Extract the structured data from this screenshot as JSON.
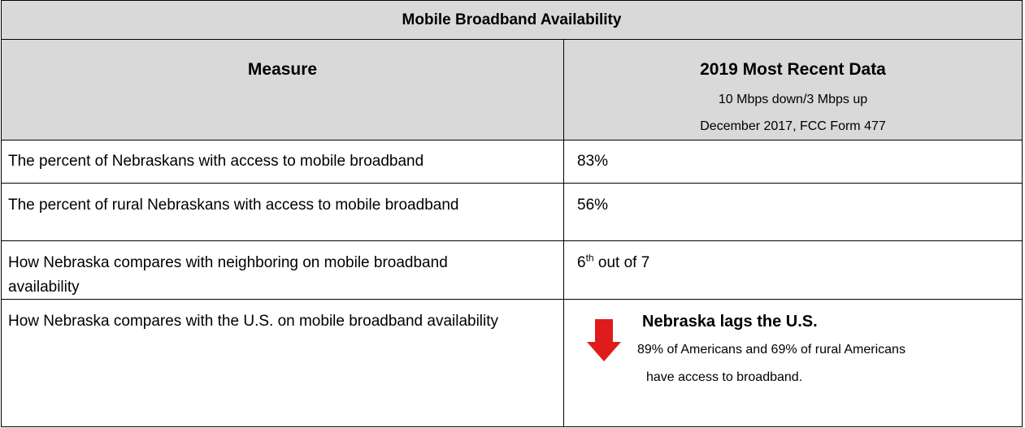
{
  "table": {
    "title": "Mobile Broadband Availability",
    "header": {
      "measure": "Measure",
      "data_title": "2019 Most Recent Data",
      "data_sub": [
        "10 Mbps down/3 Mbps up",
        "December 2017, FCC Form 477"
      ]
    },
    "rows": [
      {
        "measure": "The percent of Nebraskans with access to mobile broadband",
        "value": "83%"
      },
      {
        "measure": "The percent of rural Nebraskans with access to mobile broadband",
        "value": "56%"
      },
      {
        "measure": "How Nebraska compares with neighboring on mobile broadband availability",
        "value": {
          "rank": "6",
          "suffix": "th",
          "rest": " out of 7"
        }
      },
      {
        "measure": "How Nebraska compares with the U.S. on mobile broadband availability",
        "value": {
          "headline": "Nebraska lags the U.S.",
          "lines": [
            "89% of Americans and 69% of rural Americans",
            "have access to broadband."
          ]
        }
      }
    ]
  }
}
